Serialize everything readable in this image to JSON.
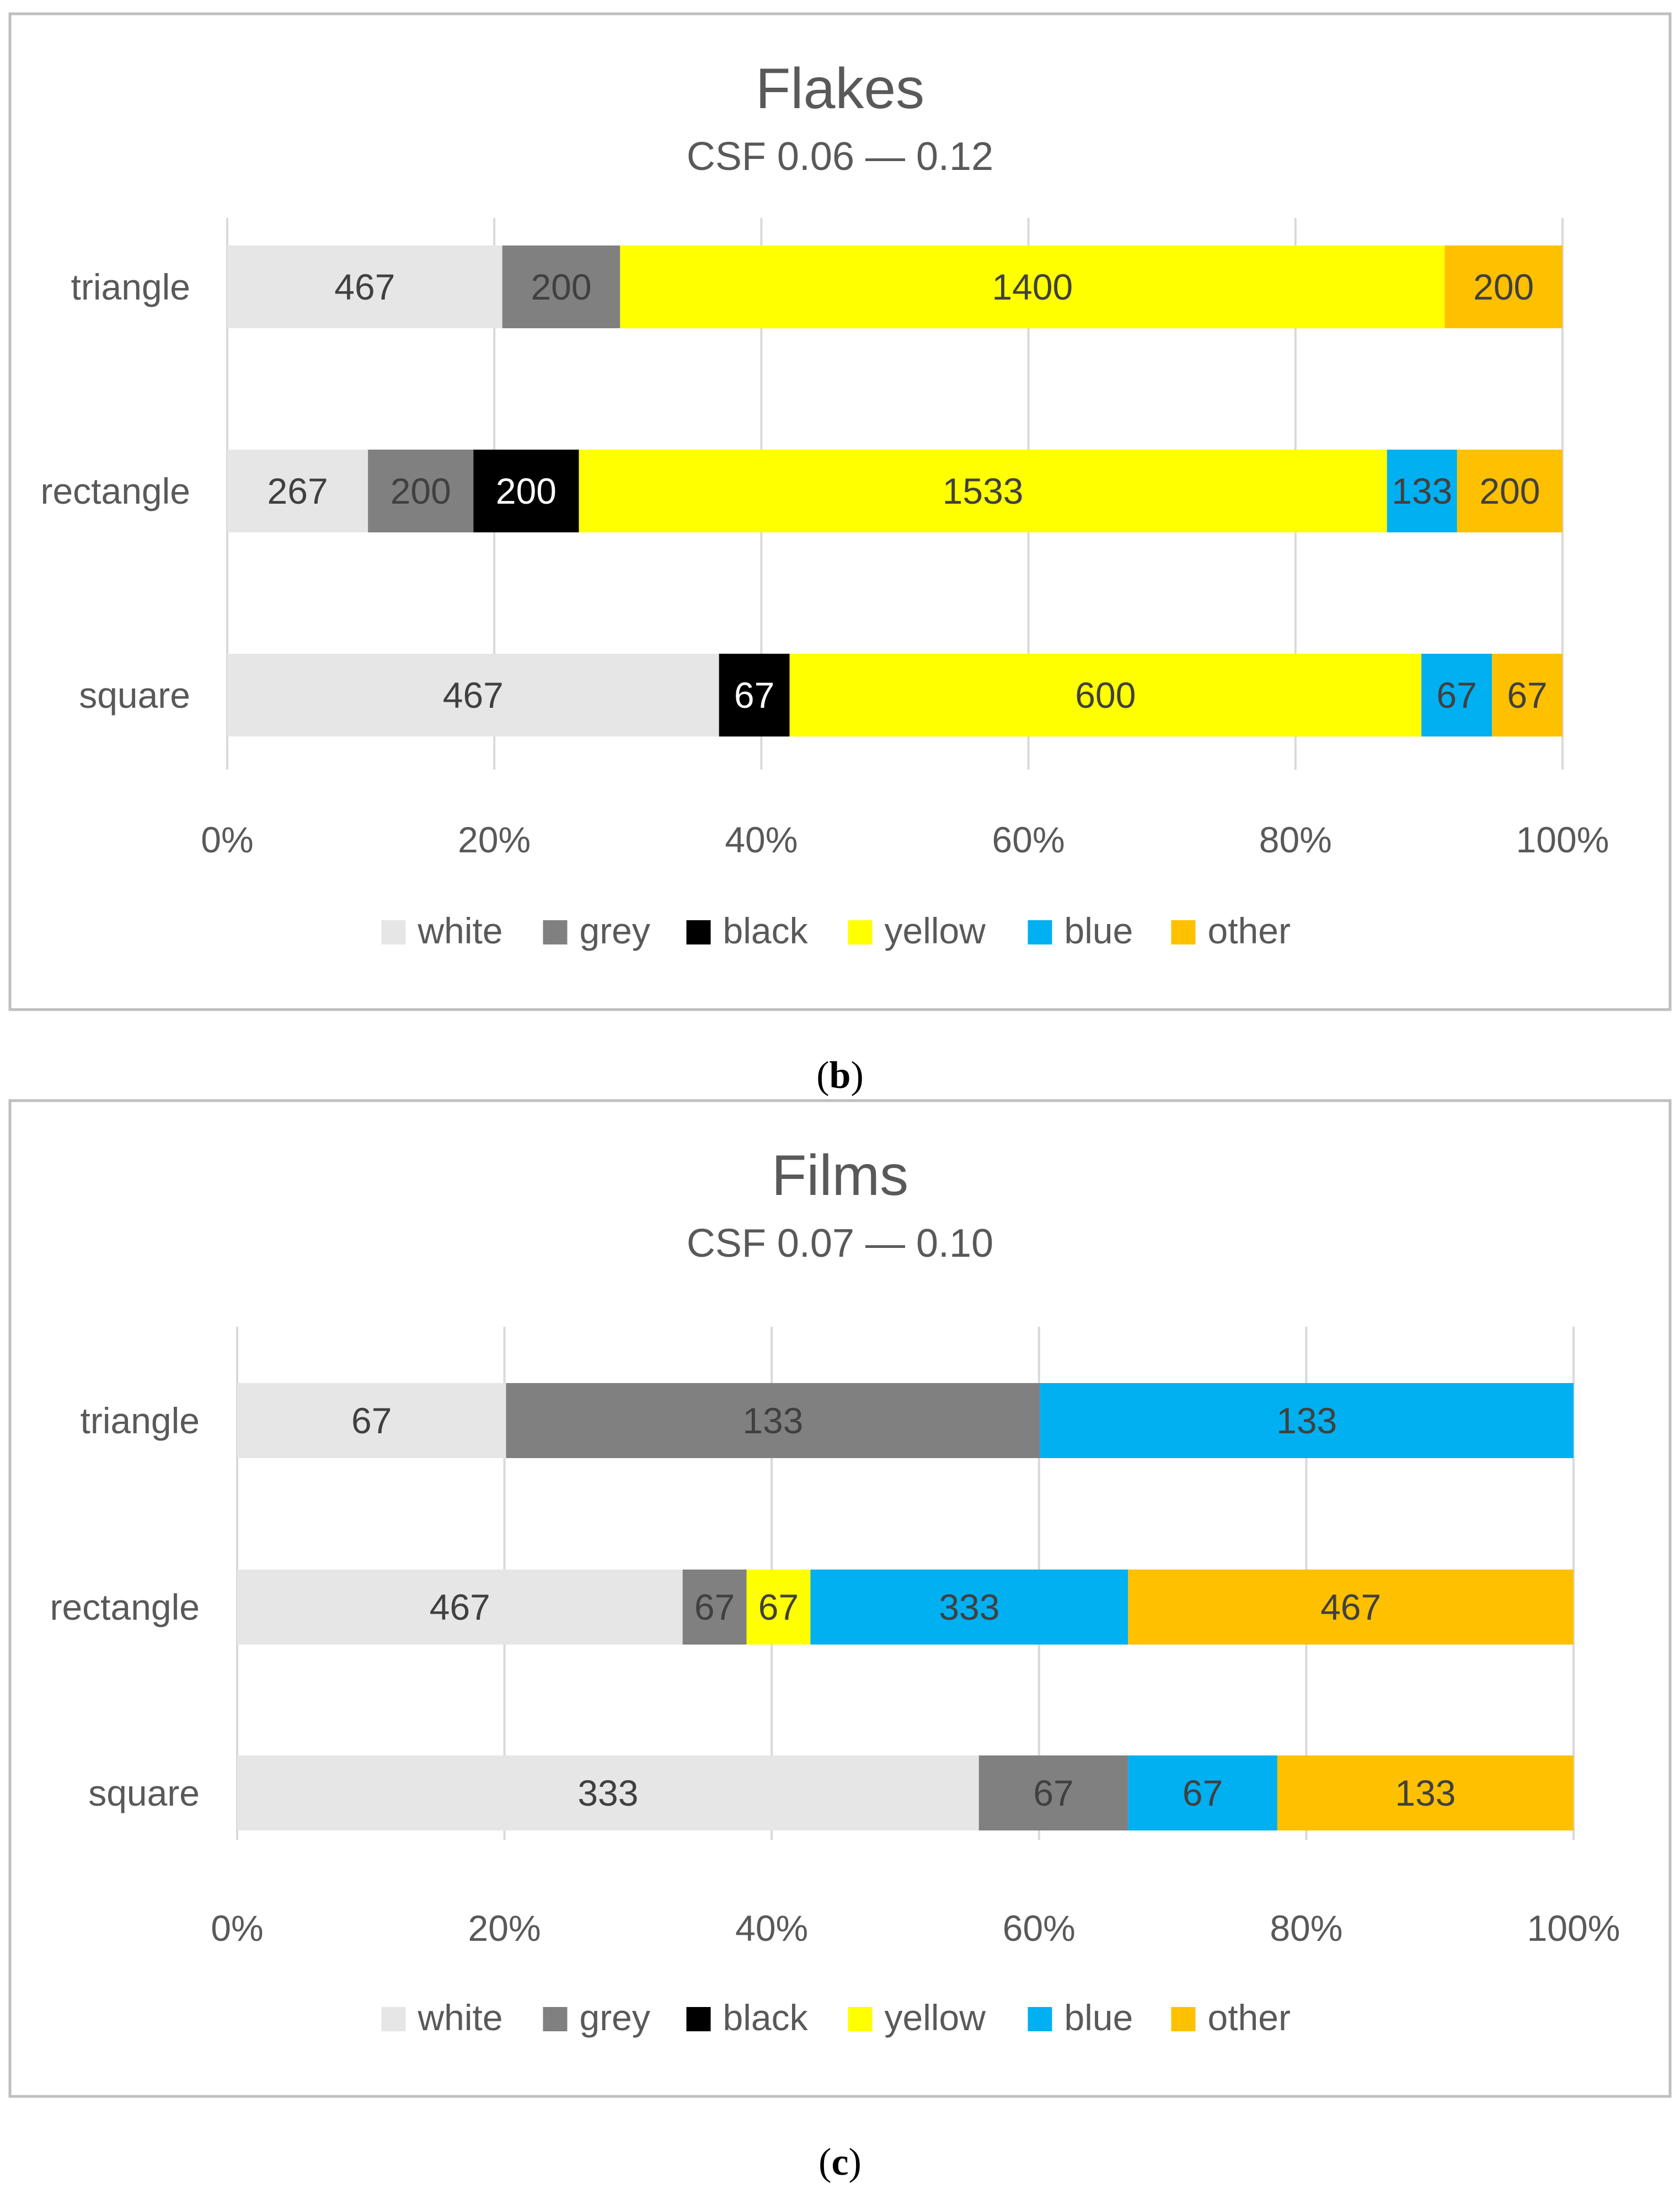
{
  "colors": {
    "white": "#e6e6e6",
    "grey": "#808080",
    "black": "#000000",
    "yellow": "#ffff00",
    "blue": "#00b0f0",
    "other": "#ffc000",
    "text_dark": "#404040",
    "text_light": "#ffffff",
    "grid": "#d9d9d9",
    "frame": "#bfbfbf"
  },
  "legend": [
    {
      "key": "white",
      "label": "white"
    },
    {
      "key": "grey",
      "label": "grey"
    },
    {
      "key": "black",
      "label": "black"
    },
    {
      "key": "yellow",
      "label": "yellow"
    },
    {
      "key": "blue",
      "label": "blue"
    },
    {
      "key": "other",
      "label": "other"
    }
  ],
  "chart_data": [
    {
      "panel_label": "b",
      "type": "bar",
      "orientation": "horizontal",
      "stacked": "100%",
      "title": "Flakes",
      "subtitle": "CSF 0.06 — 0.12",
      "categories": [
        "triangle",
        "rectangle",
        "square"
      ],
      "series": [
        {
          "name": "white",
          "values": [
            467,
            267,
            467
          ]
        },
        {
          "name": "grey",
          "values": [
            200,
            200,
            0
          ]
        },
        {
          "name": "black",
          "values": [
            0,
            200,
            67
          ]
        },
        {
          "name": "yellow",
          "values": [
            1400,
            1533,
            600
          ]
        },
        {
          "name": "blue",
          "values": [
            0,
            133,
            67
          ]
        },
        {
          "name": "other",
          "values": [
            200,
            200,
            67
          ]
        }
      ],
      "xticks": [
        "0%",
        "20%",
        "40%",
        "60%",
        "80%",
        "100%"
      ],
      "xlim": [
        0,
        100
      ],
      "grid": true,
      "legend_position": "bottom"
    },
    {
      "panel_label": "c",
      "type": "bar",
      "orientation": "horizontal",
      "stacked": "100%",
      "title": "Films",
      "subtitle": "CSF 0.07 — 0.10",
      "categories": [
        "triangle",
        "rectangle",
        "square"
      ],
      "series": [
        {
          "name": "white",
          "values": [
            67,
            467,
            333
          ]
        },
        {
          "name": "grey",
          "values": [
            133,
            67,
            67
          ]
        },
        {
          "name": "black",
          "values": [
            0,
            0,
            0
          ]
        },
        {
          "name": "yellow",
          "values": [
            0,
            67,
            0
          ]
        },
        {
          "name": "blue",
          "values": [
            133,
            333,
            67
          ]
        },
        {
          "name": "other",
          "values": [
            0,
            467,
            133
          ]
        }
      ],
      "xticks": [
        "0%",
        "20%",
        "40%",
        "60%",
        "80%",
        "100%"
      ],
      "xlim": [
        0,
        100
      ],
      "grid": true,
      "legend_position": "bottom"
    }
  ]
}
